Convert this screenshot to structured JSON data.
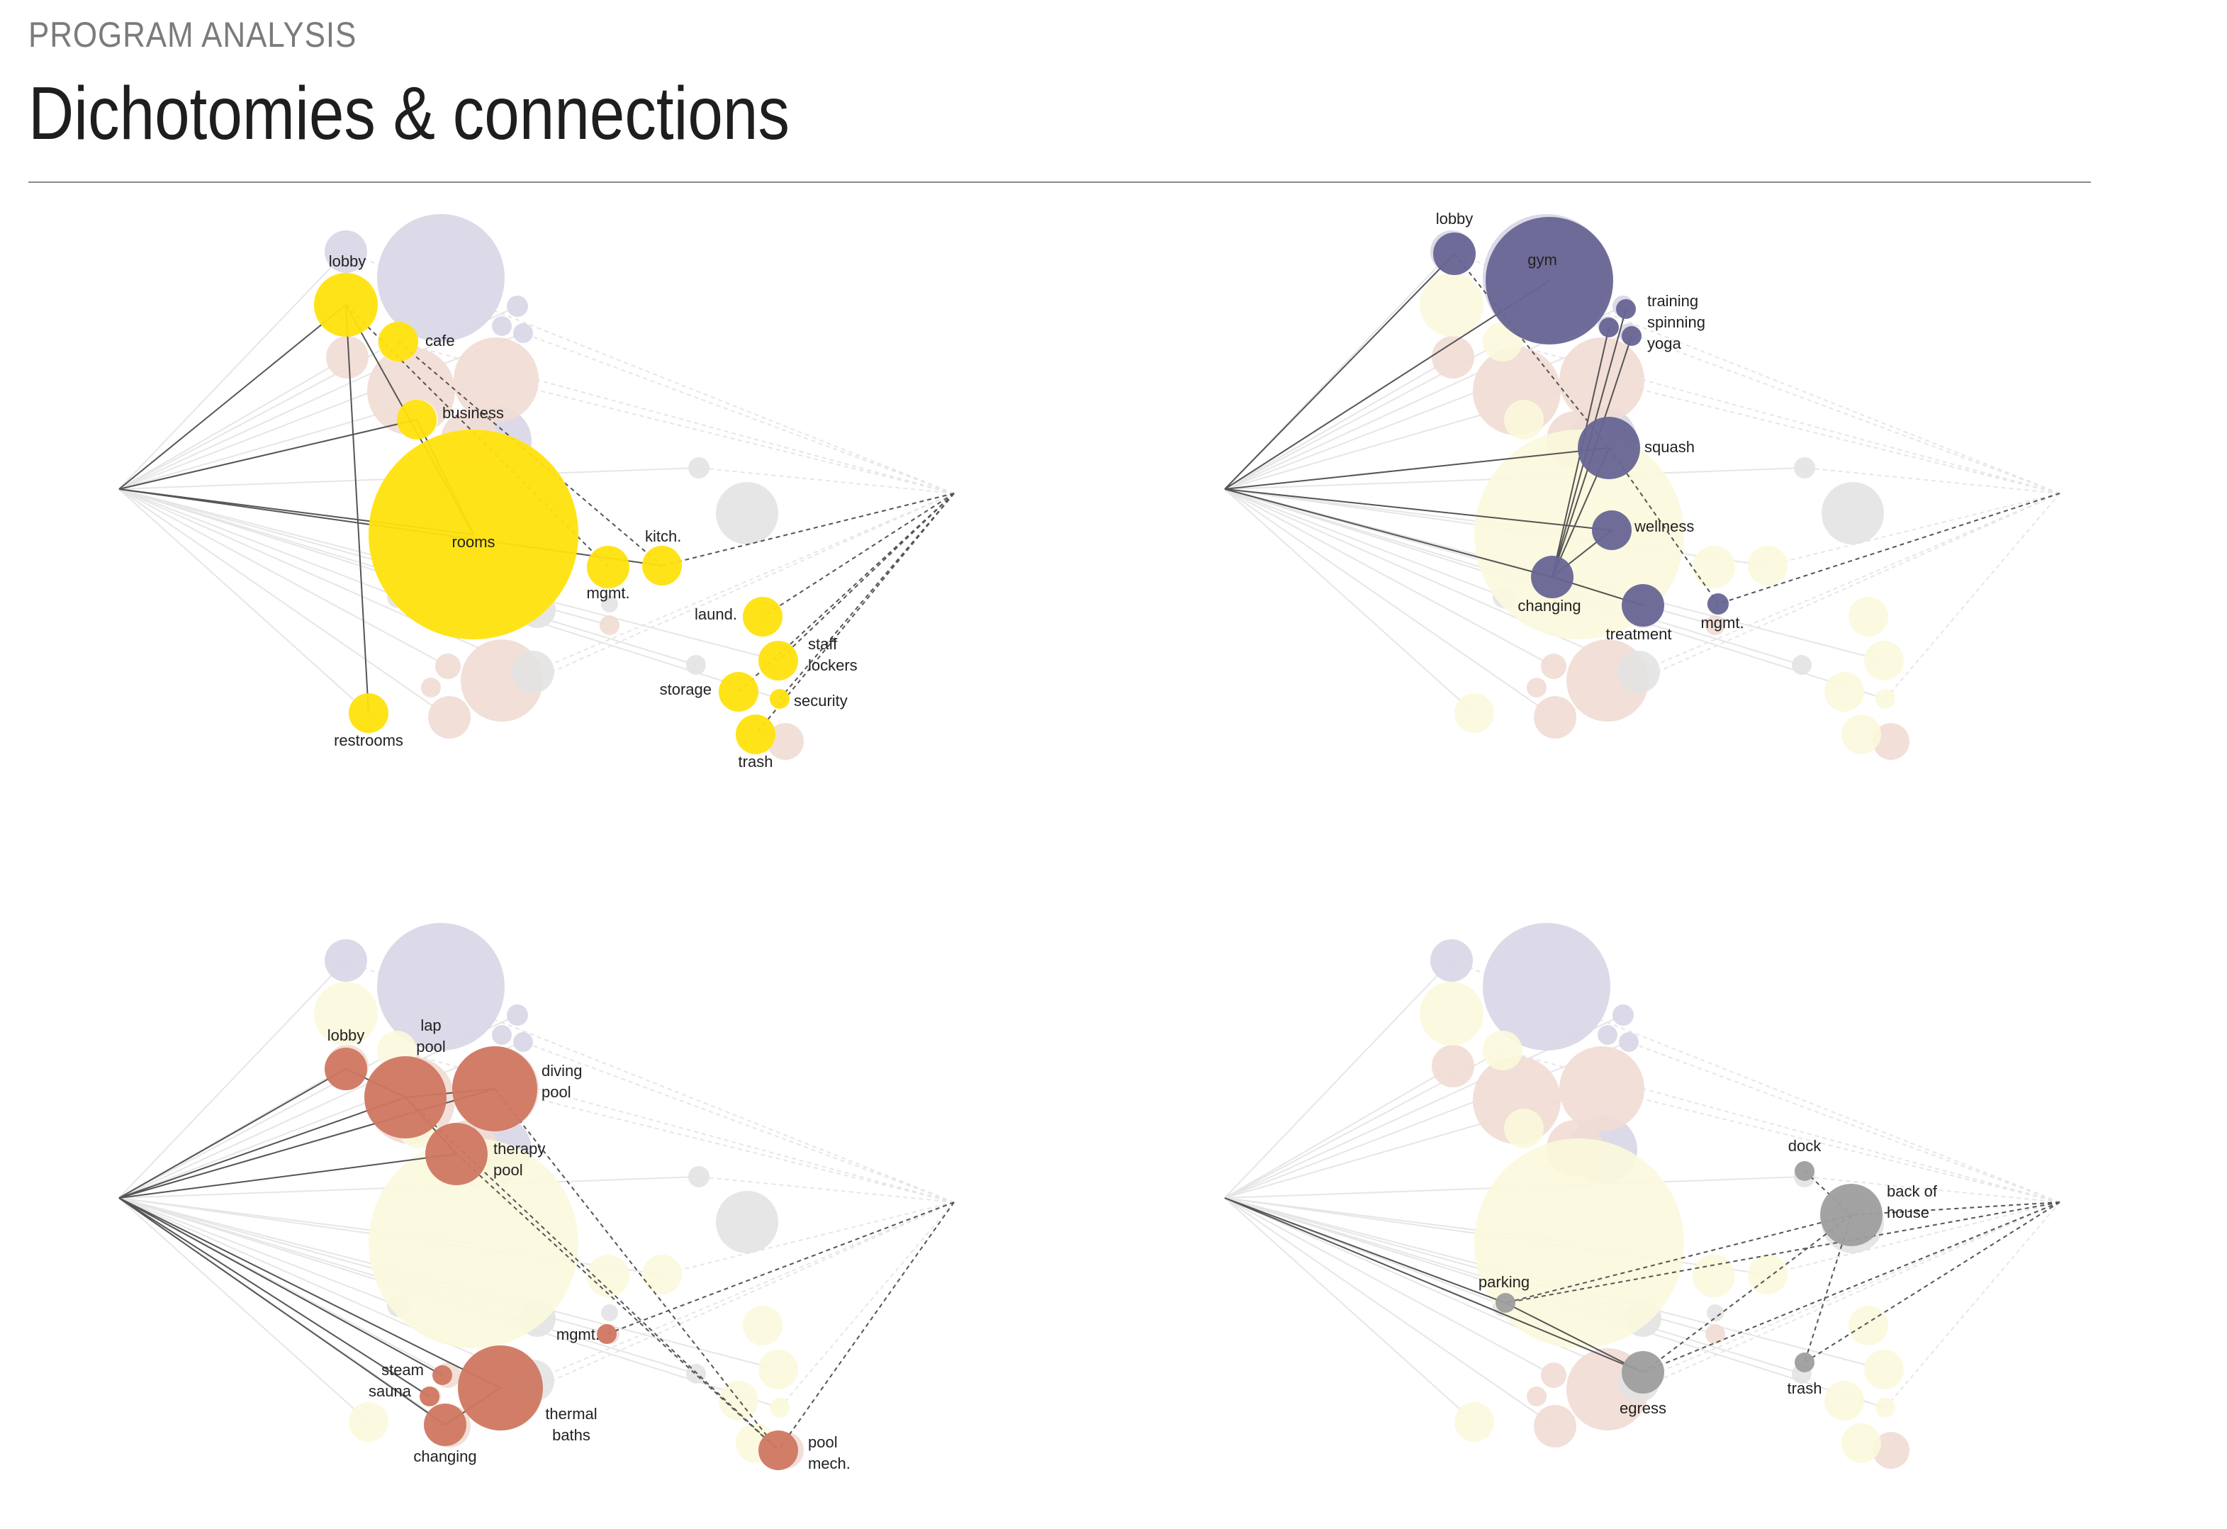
{
  "header": {
    "kicker": "PROGRAM ANALYSIS",
    "title": "Dichotomies & connections"
  },
  "colors": {
    "lavender_faded": "#d8d6e6",
    "peach_faded": "#f1dcd4",
    "gray_faded": "#e3e3e3",
    "yellow_faded": "#fbf8dc",
    "yellow_active": "#ffe20e",
    "indigo_active": "#676594",
    "terracotta_active": "#cf7762",
    "gray_active": "#9e9e9e",
    "line_solid": "#555555",
    "line_faded": "#e6e6e6"
  },
  "panels": [
    {
      "id": "hospitality",
      "highlight": "yellow_active",
      "nodes": [
        {
          "label": "lobby",
          "lines": [
            "lobby"
          ]
        },
        {
          "label": "cafe",
          "lines": [
            "cafe"
          ]
        },
        {
          "label": "business",
          "lines": [
            "business"
          ]
        },
        {
          "label": "rooms",
          "lines": [
            "rooms"
          ]
        },
        {
          "label": "mgmt.",
          "lines": [
            "mgmt."
          ]
        },
        {
          "label": "kitch.",
          "lines": [
            "kitch."
          ]
        },
        {
          "label": "laund.",
          "lines": [
            "laund."
          ]
        },
        {
          "label": "staff lockers",
          "lines": [
            "staff",
            "lockers"
          ]
        },
        {
          "label": "storage",
          "lines": [
            "storage"
          ]
        },
        {
          "label": "security",
          "lines": [
            "security"
          ]
        },
        {
          "label": "trash",
          "lines": [
            "trash"
          ]
        },
        {
          "label": "restrooms",
          "lines": [
            "restrooms"
          ]
        }
      ]
    },
    {
      "id": "fitness",
      "highlight": "indigo_active",
      "nodes": [
        {
          "label": "lobby",
          "lines": [
            "lobby"
          ]
        },
        {
          "label": "gym",
          "lines": [
            "gym"
          ]
        },
        {
          "label": "training",
          "lines": [
            "training"
          ]
        },
        {
          "label": "spinning",
          "lines": [
            "spinning"
          ]
        },
        {
          "label": "yoga",
          "lines": [
            "yoga"
          ]
        },
        {
          "label": "squash",
          "lines": [
            "squash"
          ]
        },
        {
          "label": "wellness",
          "lines": [
            "wellness"
          ]
        },
        {
          "label": "changing",
          "lines": [
            "changing"
          ]
        },
        {
          "label": "treatment",
          "lines": [
            "treatment"
          ]
        },
        {
          "label": "mgmt.",
          "lines": [
            "mgmt."
          ]
        }
      ]
    },
    {
      "id": "aquatics",
      "highlight": "terracotta_active",
      "nodes": [
        {
          "label": "lobby",
          "lines": [
            "lobby"
          ]
        },
        {
          "label": "lap pool",
          "lines": [
            "lap",
            "pool"
          ]
        },
        {
          "label": "diving pool",
          "lines": [
            "diving",
            "pool"
          ]
        },
        {
          "label": "therapy pool",
          "lines": [
            "therapy",
            "pool"
          ]
        },
        {
          "label": "mgmt.",
          "lines": [
            "mgmt."
          ]
        },
        {
          "label": "steam",
          "lines": [
            "steam"
          ]
        },
        {
          "label": "sauna",
          "lines": [
            "sauna"
          ]
        },
        {
          "label": "thermal baths",
          "lines": [
            "thermal",
            "baths"
          ]
        },
        {
          "label": "changing",
          "lines": [
            "changing"
          ]
        },
        {
          "label": "pool mech.",
          "lines": [
            "pool",
            "mech."
          ]
        }
      ]
    },
    {
      "id": "service",
      "highlight": "gray_active",
      "nodes": [
        {
          "label": "dock",
          "lines": [
            "dock"
          ]
        },
        {
          "label": "back of house",
          "lines": [
            "back of",
            "house"
          ]
        },
        {
          "label": "parking",
          "lines": [
            "parking"
          ]
        },
        {
          "label": "egress",
          "lines": [
            "egress"
          ]
        },
        {
          "label": "trash",
          "lines": [
            "trash"
          ]
        }
      ]
    }
  ]
}
